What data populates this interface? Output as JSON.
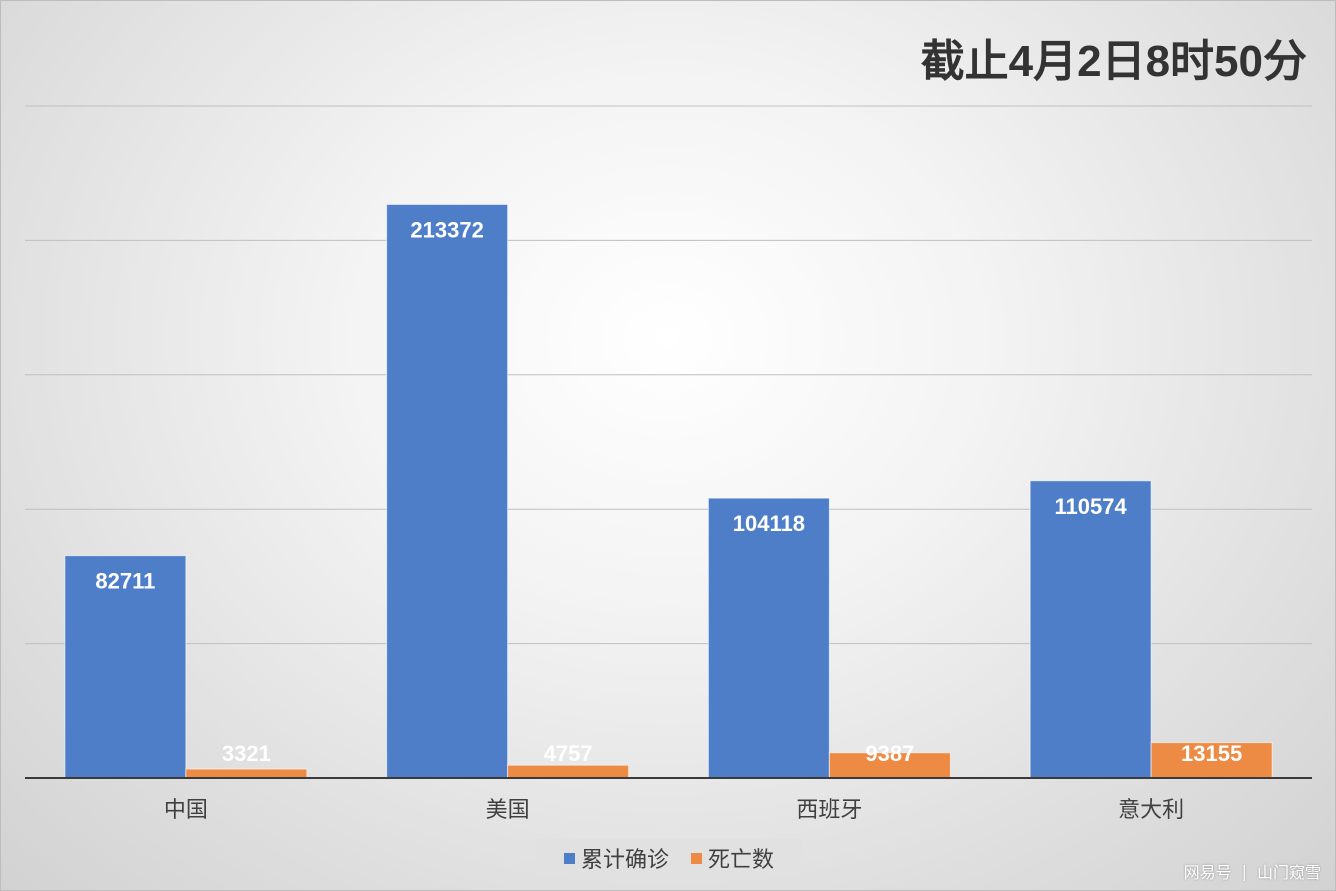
{
  "chart_data": {
    "type": "bar",
    "title": "截止4月2日8时50分",
    "categories": [
      "中国",
      "美国",
      "西班牙",
      "意大利"
    ],
    "series": [
      {
        "name": "累计确诊",
        "values": [
          82711,
          213372,
          104118,
          110574
        ],
        "color": "#4f7ec9"
      },
      {
        "name": "死亡数",
        "values": [
          3321,
          4757,
          9387,
          13155
        ],
        "color": "#ed8a43"
      }
    ],
    "ylim": [
      0,
      250000
    ],
    "grid": true,
    "legend_position": "bottom",
    "xlabel": "",
    "ylabel": ""
  },
  "watermark": {
    "site": "网易号",
    "separator": "|",
    "author": "山门窥雪"
  }
}
